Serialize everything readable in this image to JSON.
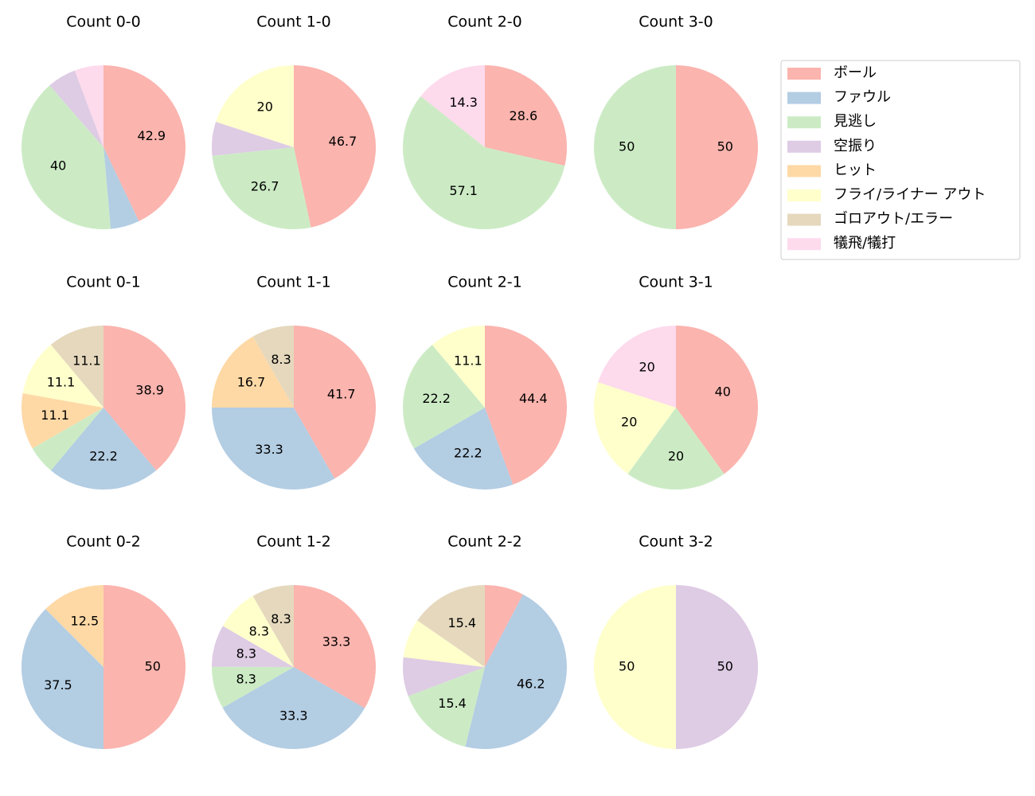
{
  "chart_data": [
    {
      "type": "pie",
      "title": "Count 0-0",
      "values": [
        42.9,
        5.7,
        40.0,
        5.7,
        0,
        0,
        0,
        5.7
      ]
    },
    {
      "type": "pie",
      "title": "Count 1-0",
      "values": [
        46.7,
        0,
        26.7,
        6.7,
        0,
        20.0,
        0,
        0
      ]
    },
    {
      "type": "pie",
      "title": "Count 2-0",
      "values": [
        28.6,
        0,
        57.1,
        0,
        0,
        0,
        0,
        14.3
      ]
    },
    {
      "type": "pie",
      "title": "Count 3-0",
      "values": [
        50.0,
        0,
        50.0,
        0,
        0,
        0,
        0,
        0
      ]
    },
    {
      "type": "pie",
      "title": "Count 0-1",
      "values": [
        38.9,
        22.2,
        5.6,
        0,
        11.1,
        11.1,
        11.1,
        0
      ]
    },
    {
      "type": "pie",
      "title": "Count 1-1",
      "values": [
        41.7,
        33.3,
        0,
        0,
        16.7,
        0,
        8.3,
        0
      ]
    },
    {
      "type": "pie",
      "title": "Count 2-1",
      "values": [
        44.4,
        22.2,
        22.2,
        0,
        0,
        11.1,
        0,
        0
      ]
    },
    {
      "type": "pie",
      "title": "Count 3-1",
      "values": [
        40.0,
        0,
        20.0,
        0,
        0,
        20.0,
        0,
        20.0
      ]
    },
    {
      "type": "pie",
      "title": "Count 0-2",
      "values": [
        50.0,
        37.5,
        0,
        0,
        12.5,
        0,
        0,
        0
      ]
    },
    {
      "type": "pie",
      "title": "Count 1-2",
      "values": [
        33.3,
        33.3,
        8.3,
        8.3,
        0,
        8.3,
        8.3,
        0
      ]
    },
    {
      "type": "pie",
      "title": "Count 2-2",
      "values": [
        7.7,
        46.2,
        15.4,
        7.7,
        0,
        7.7,
        15.4,
        0
      ]
    },
    {
      "type": "pie",
      "title": "Count 3-2",
      "values": [
        0,
        0,
        0,
        50.0,
        0,
        50.0,
        0,
        0
      ]
    }
  ],
  "legend": {
    "labels": [
      "ボール",
      "ファウル",
      "見逃し",
      "空振り",
      "ヒット",
      "フライ/ライナー アウト",
      "ゴロアウト/エラー",
      "犠飛/犠打"
    ],
    "colors": [
      "#fbb4ae",
      "#b3cde3",
      "#ccebc5",
      "#decbe4",
      "#fed9a6",
      "#ffffcc",
      "#e5d8bd",
      "#fddaec"
    ]
  }
}
